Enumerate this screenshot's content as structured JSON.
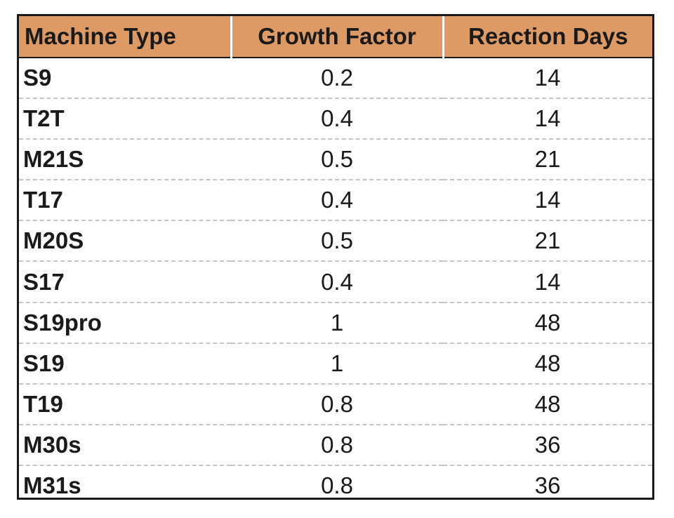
{
  "table": {
    "columns": [
      "Machine Type",
      "Growth Factor",
      "Reaction Days"
    ],
    "rows": [
      [
        "S9",
        "0.2",
        "14"
      ],
      [
        "T2T",
        "0.4",
        "14"
      ],
      [
        "M21S",
        "0.5",
        "21"
      ],
      [
        "T17",
        "0.4",
        "14"
      ],
      [
        "M20S",
        "0.5",
        "21"
      ],
      [
        "S17",
        "0.4",
        "14"
      ],
      [
        "S19pro",
        "1",
        "48"
      ],
      [
        "S19",
        "1",
        "48"
      ],
      [
        "T19",
        "0.8",
        "48"
      ],
      [
        "M30s",
        "0.8",
        "36"
      ],
      [
        "M31s",
        "0.8",
        "36"
      ]
    ]
  },
  "colors": {
    "header_background": "#dd9a64",
    "border": "#1a1a1a",
    "row_divider": "#c4c4c4"
  }
}
